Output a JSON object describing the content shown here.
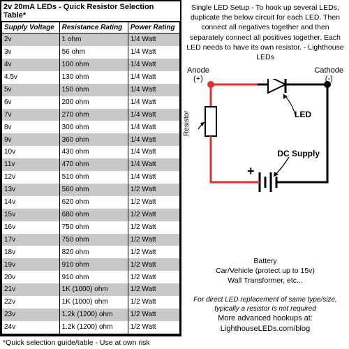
{
  "title": "2v 20mA LEDs - Quick Resistor Selection Table*",
  "columns": [
    "Supply Voltage",
    "Resistance Rating",
    "Power Rating"
  ],
  "rows": [
    [
      "2v",
      "1 ohm",
      "1/4 Watt"
    ],
    [
      "3v",
      "56 ohm",
      "1/4 Watt"
    ],
    [
      "4v",
      "100 ohm",
      "1/4 Watt"
    ],
    [
      "4.5v",
      "130 ohm",
      "1/4 Watt"
    ],
    [
      "5v",
      "150 ohm",
      "1/4 Watt"
    ],
    [
      "6v",
      "200 ohm",
      "1/4 Watt"
    ],
    [
      "7v",
      "270 ohm",
      "1/4 Watt"
    ],
    [
      "8v",
      "300 ohm",
      "1/4 Watt"
    ],
    [
      "9v",
      "360 ohm",
      "1/4 Watt"
    ],
    [
      "10v",
      "430 ohm",
      "1/4 Watt"
    ],
    [
      "11v",
      "470 ohm",
      "1/4 Watt"
    ],
    [
      "12v",
      "510 ohm",
      "1/4 Watt"
    ],
    [
      "13v",
      "560 ohm",
      "1/2 Watt"
    ],
    [
      "14v",
      "620 ohm",
      "1/2 Watt"
    ],
    [
      "15v",
      "680 ohm",
      "1/2 Watt"
    ],
    [
      "16v",
      "750 ohm",
      "1/2 Watt"
    ],
    [
      "17v",
      "750 ohm",
      "1/2 Watt"
    ],
    [
      "18v",
      "820 ohm",
      "1/2 Watt"
    ],
    [
      "19v",
      "910 ohm",
      "1/2 Watt"
    ],
    [
      "20v",
      "910 ohm",
      "1/2 Watt"
    ],
    [
      "21v",
      "1K (1000) ohm",
      "1/2 Watt"
    ],
    [
      "22v",
      "1K (1000) ohm",
      "1/2 Watt"
    ],
    [
      "23v",
      "1.2k (1200) ohm",
      "1/2 Watt"
    ],
    [
      "24v",
      "1.2k (1200) ohm",
      "1/2 Watt"
    ]
  ],
  "footnote": "*Quick selection guide/table - Use at own risk",
  "desc": "Single LED Setup - To hook up several LEDs, duplicate the below circuit for each LED. Then connect all negatives together and then separately connect all positives together. Each LED needs to have its own resistor. - Lighthouse LEDs",
  "labels": {
    "anode": "Anode",
    "anode_sign": "(+)",
    "cathode": "Cathode",
    "cathode_sign": "(-)",
    "led": "LED",
    "resistor": "Resistor",
    "dc": "DC Supply",
    "plus": "+",
    "battery": "Battery\nCar/Vehicle (protect up to 15v)\nWall Transformer, etc...",
    "note": "For direct LED replacement of same type/size, typically a resistor is not required"
  },
  "more": "More advanced hookups at:",
  "url": "LighthouseLEDs.com/blog",
  "colors": {
    "wire_pos": "#e03030",
    "wire_neg": "#000000",
    "stripe": "#c8c8c8"
  }
}
